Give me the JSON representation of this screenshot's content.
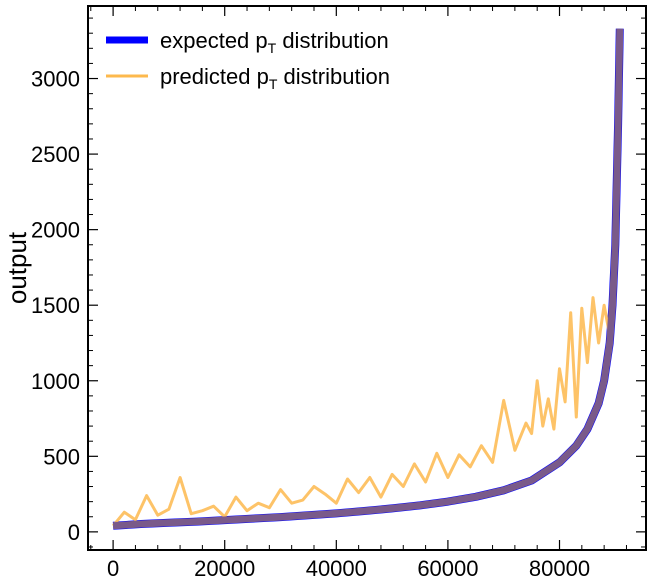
{
  "chart_data": {
    "type": "line",
    "title": "",
    "xlabel": "",
    "ylabel": "output",
    "xlim": [
      -4500,
      95500
    ],
    "ylim": [
      -120,
      3480
    ],
    "x_ticks": [
      "0",
      "20000",
      "40000",
      "60000",
      "80000"
    ],
    "x_tick_values": [
      0,
      20000,
      40000,
      60000,
      80000
    ],
    "y_ticks": [
      "0",
      "500",
      "1000",
      "1500",
      "2000",
      "2500",
      "3000"
    ],
    "y_tick_values": [
      0,
      500,
      1000,
      1500,
      2000,
      2500,
      3000
    ],
    "grid": false,
    "legend_position": "top-left",
    "series": [
      {
        "name": "expected",
        "legend_main": "expected p",
        "legend_sub": "T",
        "legend_tail": " distribution",
        "color": "#0000ff",
        "x": [
          0,
          5000,
          10000,
          15000,
          20000,
          25000,
          30000,
          35000,
          40000,
          45000,
          50000,
          55000,
          60000,
          65000,
          70000,
          75000,
          80000,
          83000,
          85000,
          87000,
          88000,
          89000,
          89500,
          90000,
          90500,
          90800
        ],
        "y": [
          40,
          52,
          60,
          68,
          78,
          88,
          98,
          110,
          122,
          138,
          155,
          175,
          200,
          232,
          275,
          340,
          460,
          570,
          680,
          850,
          1000,
          1250,
          1500,
          1900,
          2700,
          3330
        ]
      },
      {
        "name": "predicted",
        "legend_main": "predicted p",
        "legend_sub": "T",
        "legend_tail": " distribution",
        "color": "#fdb94d",
        "x": [
          0,
          2000,
          4000,
          6000,
          8000,
          10000,
          12000,
          14000,
          16000,
          18000,
          20000,
          22000,
          24000,
          26000,
          28000,
          30000,
          32000,
          34000,
          36000,
          38000,
          40000,
          42000,
          44000,
          46000,
          48000,
          50000,
          52000,
          54000,
          56000,
          58000,
          60000,
          62000,
          64000,
          66000,
          68000,
          70000,
          72000,
          74000,
          75000,
          76000,
          77000,
          78000,
          79000,
          80000,
          81000,
          82000,
          83000,
          84000,
          85000,
          86000,
          87000,
          88000,
          89000,
          89500,
          90000,
          90500,
          90800
        ],
        "y": [
          40,
          130,
          80,
          240,
          110,
          150,
          360,
          120,
          140,
          170,
          100,
          230,
          140,
          190,
          160,
          280,
          190,
          210,
          300,
          250,
          190,
          350,
          260,
          360,
          230,
          380,
          300,
          450,
          330,
          520,
          360,
          510,
          430,
          570,
          460,
          870,
          540,
          720,
          650,
          1000,
          700,
          880,
          680,
          1080,
          860,
          1450,
          760,
          1480,
          1120,
          1550,
          1250,
          1500,
          1300,
          1600,
          1950,
          2650,
          3280
        ]
      }
    ]
  }
}
